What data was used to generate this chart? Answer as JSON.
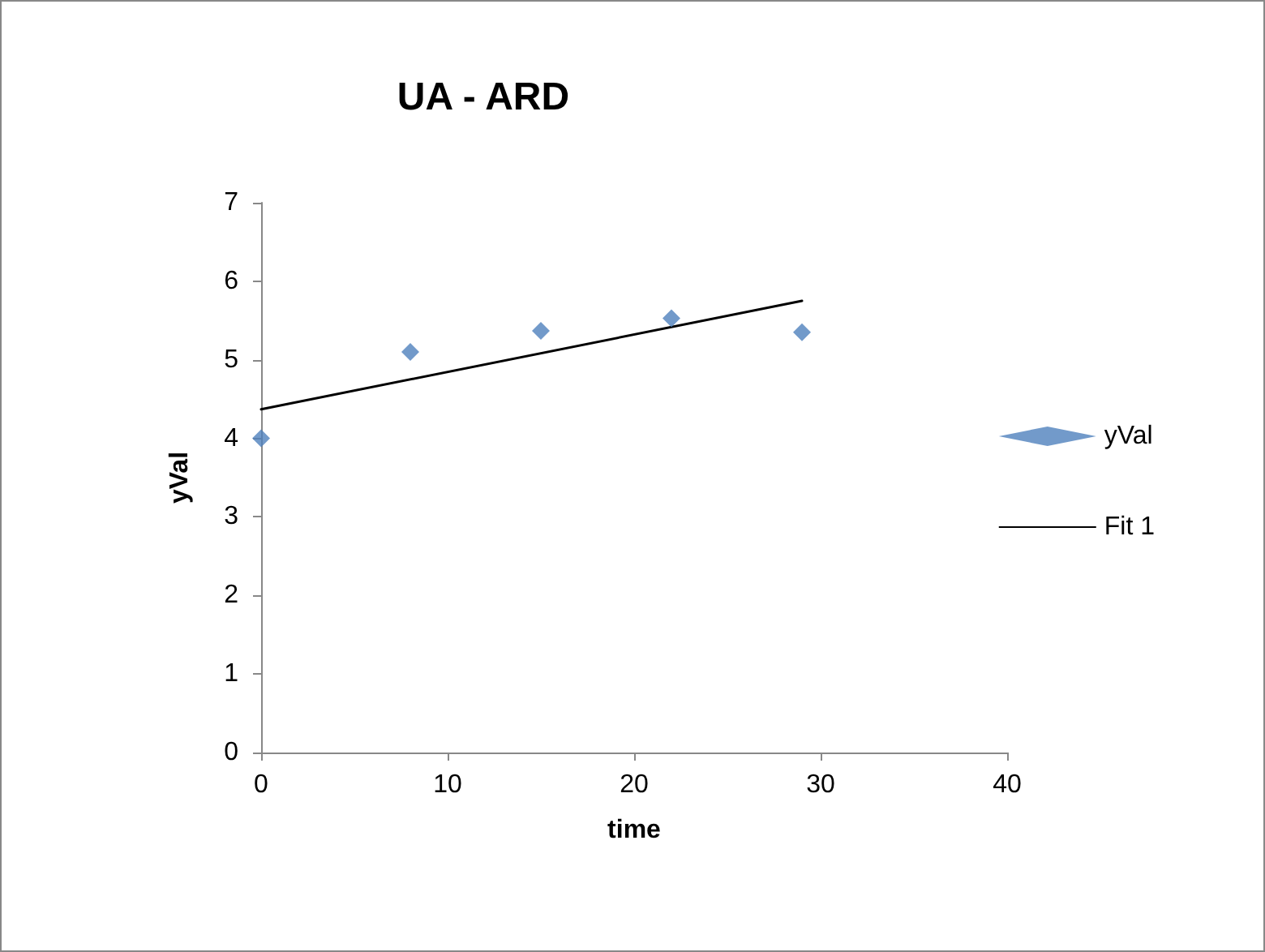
{
  "chart_data": {
    "type": "scatter",
    "title": "UA - ARD",
    "xlabel": "time",
    "ylabel": "yVal",
    "xlim": [
      0,
      40
    ],
    "xticks": [
      0,
      10,
      20,
      30,
      40
    ],
    "ylim": [
      0,
      7
    ],
    "yticks": [
      0,
      1,
      2,
      3,
      4,
      5,
      6,
      7
    ],
    "grid": false,
    "legend": "right",
    "marker": "diamond",
    "x": [
      0,
      8,
      15,
      22,
      29
    ],
    "series": [
      {
        "name": "yVal",
        "color": "#4f81bd",
        "values": [
          4.0,
          5.1,
          5.37,
          5.53,
          5.35
        ]
      },
      {
        "name": "Fit 1",
        "type": "line",
        "color": "#000000",
        "x": [
          0,
          29
        ],
        "values": [
          4.37,
          5.75
        ],
        "marker": "none",
        "line_style": "solid"
      }
    ]
  }
}
